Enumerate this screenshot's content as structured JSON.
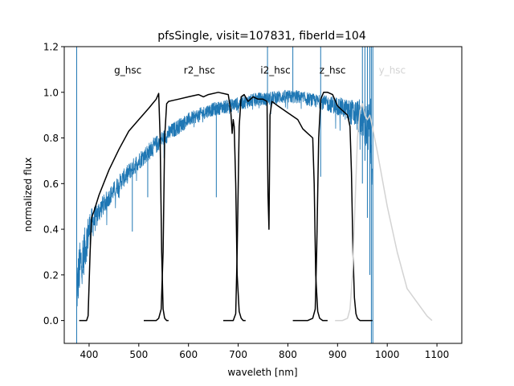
{
  "chart_data": {
    "type": "line",
    "title": "pfsSingle, visit=107831, fiberId=104",
    "xlabel": "waveleth [nm]",
    "ylabel": "normalized flux",
    "xlim": [
      350,
      1150
    ],
    "ylim": [
      -0.1,
      1.2
    ],
    "xticks": [
      400,
      500,
      600,
      700,
      800,
      900,
      1000,
      1100
    ],
    "xtick_labels": [
      "400",
      "500",
      "600",
      "700",
      "800",
      "900",
      "1000",
      "1100"
    ],
    "yticks": [
      0.0,
      0.2,
      0.4,
      0.6,
      0.8,
      1.0,
      1.2
    ],
    "ytick_labels": [
      "0.0",
      "0.2",
      "0.4",
      "0.6",
      "0.8",
      "1.0",
      "1.2"
    ],
    "grid": false,
    "colors": {
      "spectrum": "#1f77b4",
      "filter": "#000000",
      "filter_y": "#d3d3d3",
      "axes": "#000000"
    },
    "filter_labels": [
      {
        "name": "g_hsc",
        "x": 478,
        "y": 1.1,
        "color": "#000000"
      },
      {
        "name": "r2_hsc",
        "x": 622,
        "y": 1.1,
        "color": "#000000"
      },
      {
        "name": "i2_hsc",
        "x": 775,
        "y": 1.1,
        "color": "#000000"
      },
      {
        "name": "z_hsc",
        "x": 890,
        "y": 1.1,
        "color": "#000000"
      },
      {
        "name": "y_hsc",
        "x": 1010,
        "y": 1.1,
        "color": "#d3d3d3"
      }
    ],
    "series": [
      {
        "name": "spectrum",
        "style": "noisy",
        "color": "#1f77b4",
        "x": [
          375,
          380,
          390,
          400,
          420,
          440,
          460,
          480,
          500,
          520,
          540,
          560,
          580,
          600,
          620,
          640,
          660,
          680,
          700,
          720,
          740,
          760,
          780,
          800,
          820,
          840,
          860,
          880,
          900,
          920,
          940,
          950,
          960,
          970
        ],
        "y": [
          0.12,
          0.22,
          0.3,
          0.4,
          0.48,
          0.54,
          0.6,
          0.65,
          0.7,
          0.74,
          0.78,
          0.82,
          0.85,
          0.88,
          0.9,
          0.92,
          0.93,
          0.94,
          0.95,
          0.96,
          0.97,
          0.97,
          0.98,
          0.98,
          0.98,
          0.97,
          0.96,
          0.95,
          0.94,
          0.92,
          0.9,
          0.88,
          0.84,
          0.78
        ],
        "noise": [
          0.12,
          0.12,
          0.1,
          0.08,
          0.05,
          0.04,
          0.04,
          0.04,
          0.04,
          0.04,
          0.04,
          0.035,
          0.035,
          0.03,
          0.03,
          0.03,
          0.03,
          0.03,
          0.03,
          0.03,
          0.03,
          0.03,
          0.03,
          0.03,
          0.03,
          0.03,
          0.03,
          0.035,
          0.04,
          0.05,
          0.07,
          0.09,
          0.12,
          0.2
        ],
        "spikes": [
          {
            "x": 375,
            "y0": -0.1,
            "y1": 1.2
          },
          {
            "x": 487,
            "y0": 0.39,
            "y1": 0.65
          },
          {
            "x": 518,
            "y0": 0.54,
            "y1": 0.74
          },
          {
            "x": 656,
            "y0": 0.54,
            "y1": 0.92
          },
          {
            "x": 759,
            "y0": 0.95,
            "y1": 1.2
          },
          {
            "x": 810,
            "y0": 0.98,
            "y1": 1.2
          },
          {
            "x": 866,
            "y0": 0.63,
            "y1": 1.2
          },
          {
            "x": 950,
            "y0": 0.6,
            "y1": 1.2
          },
          {
            "x": 955,
            "y0": 0.7,
            "y1": 1.2
          },
          {
            "x": 960,
            "y0": 0.45,
            "y1": 1.2
          },
          {
            "x": 965,
            "y0": 0.2,
            "y1": 1.2
          },
          {
            "x": 968,
            "y0": -0.1,
            "y1": 1.2
          },
          {
            "x": 971,
            "y0": -0.1,
            "y1": 1.2
          }
        ]
      },
      {
        "name": "g_hsc",
        "color": "#000000",
        "x": [
          380,
          395,
          398,
          402,
          405,
          410,
          420,
          440,
          460,
          480,
          500,
          520,
          535,
          540,
          543,
          546,
          549,
          552,
          556,
          560
        ],
        "y": [
          0.0,
          0.0,
          0.02,
          0.3,
          0.45,
          0.48,
          0.55,
          0.66,
          0.75,
          0.83,
          0.88,
          0.93,
          0.97,
          0.995,
          0.8,
          0.3,
          0.05,
          0.01,
          0.0,
          0.0
        ]
      },
      {
        "name": "r2_hsc",
        "color": "#000000",
        "x": [
          510,
          535,
          540,
          545,
          549,
          552,
          556,
          560,
          570,
          580,
          600,
          620,
          630,
          640,
          660,
          680,
          685,
          688,
          690,
          692,
          695,
          698,
          702,
          706,
          710,
          715
        ],
        "y": [
          0.0,
          0.0,
          0.01,
          0.05,
          0.3,
          0.8,
          0.95,
          0.96,
          0.965,
          0.97,
          0.98,
          0.99,
          0.98,
          0.99,
          1.0,
          0.99,
          0.92,
          0.82,
          0.88,
          0.85,
          0.6,
          0.2,
          0.04,
          0.01,
          0.0,
          0.0
        ]
      },
      {
        "name": "i2_hsc",
        "color": "#000000",
        "x": [
          670,
          690,
          695,
          698,
          702,
          706,
          712,
          720,
          730,
          740,
          750,
          758,
          760,
          762,
          764,
          768,
          780,
          800,
          820,
          830,
          840,
          850,
          853,
          856,
          860,
          864,
          870,
          880
        ],
        "y": [
          0.0,
          0.0,
          0.03,
          0.3,
          0.85,
          0.98,
          0.99,
          0.96,
          0.98,
          0.97,
          0.97,
          0.96,
          0.55,
          0.4,
          0.9,
          0.96,
          0.94,
          0.91,
          0.88,
          0.84,
          0.82,
          0.8,
          0.6,
          0.2,
          0.04,
          0.01,
          0.0,
          0.0
        ]
      },
      {
        "name": "z_hsc",
        "color": "#000000",
        "x": [
          810,
          840,
          850,
          855,
          858,
          862,
          866,
          872,
          880,
          890,
          900,
          910,
          920,
          925,
          928,
          931,
          934,
          937,
          940,
          945,
          960,
          970
        ],
        "y": [
          0.0,
          0.0,
          0.01,
          0.05,
          0.3,
          0.8,
          0.97,
          1.0,
          1.0,
          0.99,
          0.94,
          0.92,
          0.9,
          0.85,
          0.65,
          0.3,
          0.1,
          0.03,
          0.01,
          0.0,
          0.0,
          0.0
        ]
      },
      {
        "name": "y_hsc",
        "color": "#d3d3d3",
        "x": [
          895,
          910,
          920,
          925,
          930,
          935,
          940,
          945,
          950,
          955,
          960,
          965,
          970,
          980,
          1000,
          1020,
          1040,
          1060,
          1080,
          1090
        ],
        "y": [
          0.0,
          0.0,
          0.01,
          0.05,
          0.2,
          0.5,
          0.8,
          0.92,
          0.95,
          0.9,
          0.88,
          0.9,
          0.85,
          0.74,
          0.5,
          0.3,
          0.14,
          0.08,
          0.02,
          0.0
        ]
      }
    ]
  }
}
